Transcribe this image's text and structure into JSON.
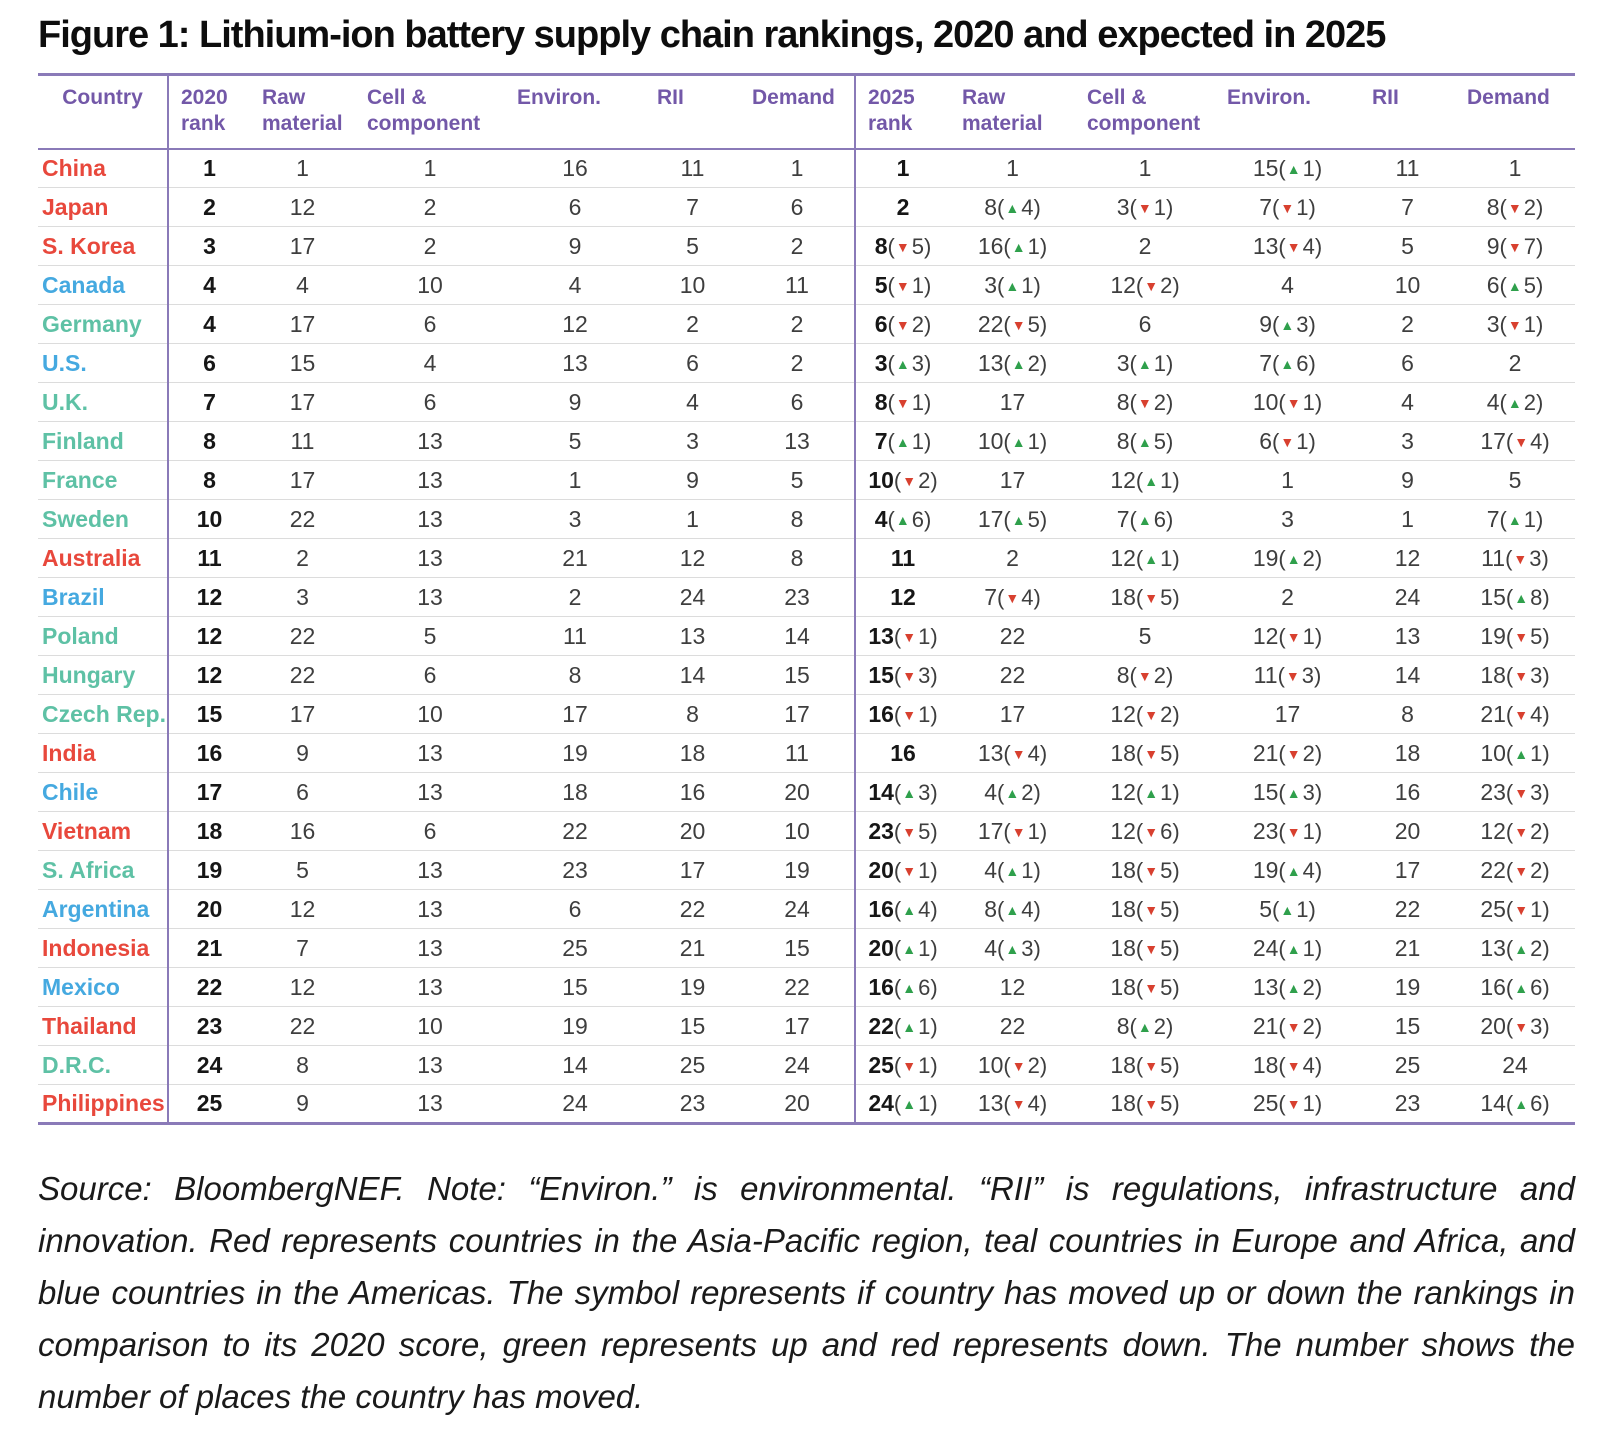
{
  "title": "Figure 1: Lithium-ion battery supply chain rankings, 2020 and expected in 2025",
  "colors": {
    "header_purple": "#7358a8",
    "line_purple": "#8a7ab8",
    "asia_pacific_red": "#e8483c",
    "europe_africa_teal": "#5ec1a5",
    "americas_blue": "#45a9e0",
    "up_green": "#2fa04c",
    "down_red": "#d8402f"
  },
  "table": {
    "country_header": "Country",
    "sections": [
      {
        "name": "2020",
        "headers": [
          "2020\nrank",
          "Raw\nmaterial",
          "Cell &\ncomponent",
          "Environ.",
          "RII",
          "Demand"
        ]
      },
      {
        "name": "2025",
        "headers": [
          "2025\nrank",
          "Raw\nmaterial",
          "Cell &\ncomponent",
          "Environ.",
          "RII",
          "Demand"
        ]
      }
    ],
    "rows": [
      {
        "country": "China",
        "region": "asia_pacific_red",
        "r2020": [
          "1",
          "1",
          "1",
          "16",
          "11",
          "1"
        ],
        "r2025": [
          {
            "v": "1"
          },
          {
            "v": "1"
          },
          {
            "v": "1"
          },
          {
            "v": "15",
            "d": "up",
            "n": "1"
          },
          {
            "v": "11"
          },
          {
            "v": "1"
          }
        ]
      },
      {
        "country": "Japan",
        "region": "asia_pacific_red",
        "r2020": [
          "2",
          "12",
          "2",
          "6",
          "7",
          "6"
        ],
        "r2025": [
          {
            "v": "2"
          },
          {
            "v": "8",
            "d": "up",
            "n": "4"
          },
          {
            "v": "3",
            "d": "down",
            "n": "1"
          },
          {
            "v": "7",
            "d": "down",
            "n": "1"
          },
          {
            "v": "7"
          },
          {
            "v": "8",
            "d": "down",
            "n": "2"
          }
        ]
      },
      {
        "country": "S. Korea",
        "region": "asia_pacific_red",
        "r2020": [
          "3",
          "17",
          "2",
          "9",
          "5",
          "2"
        ],
        "r2025": [
          {
            "v": "8",
            "d": "down",
            "n": "5"
          },
          {
            "v": "16",
            "d": "up",
            "n": "1"
          },
          {
            "v": "2"
          },
          {
            "v": "13",
            "d": "down",
            "n": "4"
          },
          {
            "v": "5"
          },
          {
            "v": "9",
            "d": "down",
            "n": "7"
          }
        ]
      },
      {
        "country": "Canada",
        "region": "americas_blue",
        "r2020": [
          "4",
          "4",
          "10",
          "4",
          "10",
          "11"
        ],
        "r2025": [
          {
            "v": "5",
            "d": "down",
            "n": "1"
          },
          {
            "v": "3",
            "d": "up",
            "n": "1"
          },
          {
            "v": "12",
            "d": "down",
            "n": "2"
          },
          {
            "v": "4"
          },
          {
            "v": "10"
          },
          {
            "v": "6",
            "d": "up",
            "n": "5"
          }
        ]
      },
      {
        "country": "Germany",
        "region": "europe_africa_teal",
        "r2020": [
          "4",
          "17",
          "6",
          "12",
          "2",
          "2"
        ],
        "r2025": [
          {
            "v": "6",
            "d": "down",
            "n": "2"
          },
          {
            "v": "22",
            "d": "down",
            "n": "5"
          },
          {
            "v": "6"
          },
          {
            "v": "9",
            "d": "up",
            "n": "3"
          },
          {
            "v": "2"
          },
          {
            "v": "3",
            "d": "down",
            "n": "1"
          }
        ]
      },
      {
        "country": "U.S.",
        "region": "americas_blue",
        "r2020": [
          "6",
          "15",
          "4",
          "13",
          "6",
          "2"
        ],
        "r2025": [
          {
            "v": "3",
            "d": "up",
            "n": "3"
          },
          {
            "v": "13",
            "d": "up",
            "n": "2"
          },
          {
            "v": "3",
            "d": "up",
            "n": "1"
          },
          {
            "v": "7",
            "d": "up",
            "n": "6"
          },
          {
            "v": "6"
          },
          {
            "v": "2"
          }
        ]
      },
      {
        "country": "U.K.",
        "region": "europe_africa_teal",
        "r2020": [
          "7",
          "17",
          "6",
          "9",
          "4",
          "6"
        ],
        "r2025": [
          {
            "v": "8",
            "d": "down",
            "n": "1"
          },
          {
            "v": "17"
          },
          {
            "v": "8",
            "d": "down",
            "n": "2"
          },
          {
            "v": "10",
            "d": "down",
            "n": "1"
          },
          {
            "v": "4"
          },
          {
            "v": "4",
            "d": "up",
            "n": "2"
          }
        ]
      },
      {
        "country": "Finland",
        "region": "europe_africa_teal",
        "r2020": [
          "8",
          "11",
          "13",
          "5",
          "3",
          "13"
        ],
        "r2025": [
          {
            "v": "7",
            "d": "up",
            "n": "1"
          },
          {
            "v": "10",
            "d": "up",
            "n": "1"
          },
          {
            "v": "8",
            "d": "up",
            "n": "5"
          },
          {
            "v": "6",
            "d": "down",
            "n": "1"
          },
          {
            "v": "3"
          },
          {
            "v": "17",
            "d": "down",
            "n": "4"
          }
        ]
      },
      {
        "country": "France",
        "region": "europe_africa_teal",
        "r2020": [
          "8",
          "17",
          "13",
          "1",
          "9",
          "5"
        ],
        "r2025": [
          {
            "v": "10",
            "d": "down",
            "n": "2"
          },
          {
            "v": "17"
          },
          {
            "v": "12",
            "d": "up",
            "n": "1"
          },
          {
            "v": "1"
          },
          {
            "v": "9"
          },
          {
            "v": "5"
          }
        ]
      },
      {
        "country": "Sweden",
        "region": "europe_africa_teal",
        "r2020": [
          "10",
          "22",
          "13",
          "3",
          "1",
          "8"
        ],
        "r2025": [
          {
            "v": "4",
            "d": "up",
            "n": "6"
          },
          {
            "v": "17",
            "d": "up",
            "n": "5"
          },
          {
            "v": "7",
            "d": "up",
            "n": "6"
          },
          {
            "v": "3"
          },
          {
            "v": "1"
          },
          {
            "v": "7",
            "d": "up",
            "n": "1"
          }
        ]
      },
      {
        "country": "Australia",
        "region": "asia_pacific_red",
        "r2020": [
          "11",
          "2",
          "13",
          "21",
          "12",
          "8"
        ],
        "r2025": [
          {
            "v": "11"
          },
          {
            "v": "2"
          },
          {
            "v": "12",
            "d": "up",
            "n": "1"
          },
          {
            "v": "19",
            "d": "up",
            "n": "2"
          },
          {
            "v": "12"
          },
          {
            "v": "11",
            "d": "down",
            "n": "3"
          }
        ]
      },
      {
        "country": "Brazil",
        "region": "americas_blue",
        "r2020": [
          "12",
          "3",
          "13",
          "2",
          "24",
          "23"
        ],
        "r2025": [
          {
            "v": "12"
          },
          {
            "v": "7",
            "d": "down",
            "n": "4"
          },
          {
            "v": "18",
            "d": "down",
            "n": "5"
          },
          {
            "v": "2"
          },
          {
            "v": "24"
          },
          {
            "v": "15",
            "d": "up",
            "n": "8"
          }
        ]
      },
      {
        "country": "Poland",
        "region": "europe_africa_teal",
        "r2020": [
          "12",
          "22",
          "5",
          "11",
          "13",
          "14"
        ],
        "r2025": [
          {
            "v": "13",
            "d": "down",
            "n": "1"
          },
          {
            "v": "22"
          },
          {
            "v": "5"
          },
          {
            "v": "12",
            "d": "down",
            "n": "1"
          },
          {
            "v": "13"
          },
          {
            "v": "19",
            "d": "down",
            "n": "5"
          }
        ]
      },
      {
        "country": "Hungary",
        "region": "europe_africa_teal",
        "r2020": [
          "12",
          "22",
          "6",
          "8",
          "14",
          "15"
        ],
        "r2025": [
          {
            "v": "15",
            "d": "down",
            "n": "3"
          },
          {
            "v": "22"
          },
          {
            "v": "8",
            "d": "down",
            "n": "2"
          },
          {
            "v": "11",
            "d": "down",
            "n": "3"
          },
          {
            "v": "14"
          },
          {
            "v": "18",
            "d": "down",
            "n": "3"
          }
        ]
      },
      {
        "country": "Czech Rep.",
        "region": "europe_africa_teal",
        "r2020": [
          "15",
          "17",
          "10",
          "17",
          "8",
          "17"
        ],
        "r2025": [
          {
            "v": "16",
            "d": "down",
            "n": "1"
          },
          {
            "v": "17"
          },
          {
            "v": "12",
            "d": "down",
            "n": "2"
          },
          {
            "v": "17"
          },
          {
            "v": "8"
          },
          {
            "v": "21",
            "d": "down",
            "n": "4"
          }
        ]
      },
      {
        "country": "India",
        "region": "asia_pacific_red",
        "r2020": [
          "16",
          "9",
          "13",
          "19",
          "18",
          "11"
        ],
        "r2025": [
          {
            "v": "16"
          },
          {
            "v": "13",
            "d": "down",
            "n": "4"
          },
          {
            "v": "18",
            "d": "down",
            "n": "5"
          },
          {
            "v": "21",
            "d": "down",
            "n": "2"
          },
          {
            "v": "18"
          },
          {
            "v": "10",
            "d": "up",
            "n": "1"
          }
        ]
      },
      {
        "country": "Chile",
        "region": "americas_blue",
        "r2020": [
          "17",
          "6",
          "13",
          "18",
          "16",
          "20"
        ],
        "r2025": [
          {
            "v": "14",
            "d": "up",
            "n": "3"
          },
          {
            "v": "4",
            "d": "up",
            "n": "2"
          },
          {
            "v": "12",
            "d": "up",
            "n": "1"
          },
          {
            "v": "15",
            "d": "up",
            "n": "3"
          },
          {
            "v": "16"
          },
          {
            "v": "23",
            "d": "down",
            "n": "3"
          }
        ]
      },
      {
        "country": "Vietnam",
        "region": "asia_pacific_red",
        "r2020": [
          "18",
          "16",
          "6",
          "22",
          "20",
          "10"
        ],
        "r2025": [
          {
            "v": "23",
            "d": "down",
            "n": "5"
          },
          {
            "v": "17",
            "d": "down",
            "n": "1"
          },
          {
            "v": "12",
            "d": "down",
            "n": "6"
          },
          {
            "v": "23",
            "d": "down",
            "n": "1"
          },
          {
            "v": "20"
          },
          {
            "v": "12",
            "d": "down",
            "n": "2"
          }
        ]
      },
      {
        "country": "S. Africa",
        "region": "europe_africa_teal",
        "r2020": [
          "19",
          "5",
          "13",
          "23",
          "17",
          "19"
        ],
        "r2025": [
          {
            "v": "20",
            "d": "down",
            "n": "1"
          },
          {
            "v": "4",
            "d": "up",
            "n": "1"
          },
          {
            "v": "18",
            "d": "down",
            "n": "5"
          },
          {
            "v": "19",
            "d": "up",
            "n": "4"
          },
          {
            "v": "17"
          },
          {
            "v": "22",
            "d": "down",
            "n": "2"
          }
        ]
      },
      {
        "country": "Argentina",
        "region": "americas_blue",
        "r2020": [
          "20",
          "12",
          "13",
          "6",
          "22",
          "24"
        ],
        "r2025": [
          {
            "v": "16",
            "d": "up",
            "n": "4"
          },
          {
            "v": "8",
            "d": "up",
            "n": "4"
          },
          {
            "v": "18",
            "d": "down",
            "n": "5"
          },
          {
            "v": "5",
            "d": "up",
            "n": "1"
          },
          {
            "v": "22"
          },
          {
            "v": "25",
            "d": "down",
            "n": "1"
          }
        ]
      },
      {
        "country": "Indonesia",
        "region": "asia_pacific_red",
        "r2020": [
          "21",
          "7",
          "13",
          "25",
          "21",
          "15"
        ],
        "r2025": [
          {
            "v": "20",
            "d": "up",
            "n": "1"
          },
          {
            "v": "4",
            "d": "up",
            "n": "3"
          },
          {
            "v": "18",
            "d": "down",
            "n": "5"
          },
          {
            "v": "24",
            "d": "up",
            "n": "1"
          },
          {
            "v": "21"
          },
          {
            "v": "13",
            "d": "up",
            "n": "2"
          }
        ]
      },
      {
        "country": "Mexico",
        "region": "americas_blue",
        "r2020": [
          "22",
          "12",
          "13",
          "15",
          "19",
          "22"
        ],
        "r2025": [
          {
            "v": "16",
            "d": "up",
            "n": "6"
          },
          {
            "v": "12"
          },
          {
            "v": "18",
            "d": "down",
            "n": "5"
          },
          {
            "v": "13",
            "d": "up",
            "n": "2"
          },
          {
            "v": "19"
          },
          {
            "v": "16",
            "d": "up",
            "n": "6"
          }
        ]
      },
      {
        "country": "Thailand",
        "region": "asia_pacific_red",
        "r2020": [
          "23",
          "22",
          "10",
          "19",
          "15",
          "17"
        ],
        "r2025": [
          {
            "v": "22",
            "d": "up",
            "n": "1"
          },
          {
            "v": "22"
          },
          {
            "v": "8",
            "d": "up",
            "n": "2"
          },
          {
            "v": "21",
            "d": "down",
            "n": "2"
          },
          {
            "v": "15"
          },
          {
            "v": "20",
            "d": "down",
            "n": "3"
          }
        ]
      },
      {
        "country": "D.R.C.",
        "region": "europe_africa_teal",
        "r2020": [
          "24",
          "8",
          "13",
          "14",
          "25",
          "24"
        ],
        "r2025": [
          {
            "v": "25",
            "d": "down",
            "n": "1"
          },
          {
            "v": "10",
            "d": "down",
            "n": "2"
          },
          {
            "v": "18",
            "d": "down",
            "n": "5"
          },
          {
            "v": "18",
            "d": "down",
            "n": "4"
          },
          {
            "v": "25"
          },
          {
            "v": "24"
          }
        ]
      },
      {
        "country": "Philippines",
        "region": "asia_pacific_red",
        "r2020": [
          "25",
          "9",
          "13",
          "24",
          "23",
          "20"
        ],
        "r2025": [
          {
            "v": "24",
            "d": "up",
            "n": "1"
          },
          {
            "v": "13",
            "d": "down",
            "n": "4"
          },
          {
            "v": "18",
            "d": "down",
            "n": "5"
          },
          {
            "v": "25",
            "d": "down",
            "n": "1"
          },
          {
            "v": "23"
          },
          {
            "v": "14",
            "d": "up",
            "n": "6"
          }
        ]
      }
    ]
  },
  "note": "Source: BloombergNEF. Note: “Environ.” is environmental. “RII” is regulations, infrastructure and innovation. Red represents countries in the Asia-Pacific region, teal countries in Europe and Africa, and blue countries in the Americas. The symbol represents if country has moved up or down the rankings in comparison to its 2020 score, green represents up and red represents down. The number shows the number of places the country has moved."
}
